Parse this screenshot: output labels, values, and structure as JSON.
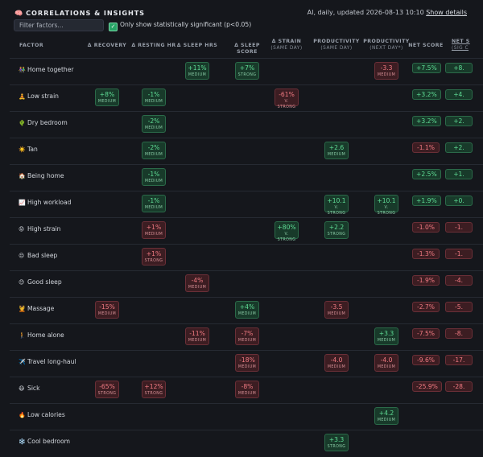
{
  "header": {
    "title_icon": "🧠",
    "title": "CORRELATIONS & INSIGHTS",
    "meta": "AI, daily, updated 2026-08-13 10:10",
    "details_link": "Show details"
  },
  "filter": {
    "placeholder": "Filter factors..."
  },
  "significance": {
    "checked": true,
    "label": "Only show statistically significant (p<0.05)"
  },
  "columns": [
    {
      "key": "factor",
      "label": "FACTOR",
      "sub": ""
    },
    {
      "key": "recovery",
      "label": "Δ RECOVERY",
      "sub": ""
    },
    {
      "key": "rhr",
      "label": "Δ RESTING HR",
      "sub": ""
    },
    {
      "key": "sleep_hrs",
      "label": "Δ SLEEP HRS",
      "sub": ""
    },
    {
      "key": "sleep_score",
      "label": "Δ SLEEP SCORE",
      "sub": ""
    },
    {
      "key": "strain",
      "label": "Δ STRAIN",
      "sub": "(SAME DAY)"
    },
    {
      "key": "prod_same",
      "label": "PRODUCTIVITY",
      "sub": "(SAME DAY)"
    },
    {
      "key": "prod_next",
      "label": "PRODUCTIVITY",
      "sub": "(NEXT DAY*)"
    },
    {
      "key": "net",
      "label": "NET SCORE",
      "sub": ""
    },
    {
      "key": "net_sig",
      "label": "NET S",
      "sub": "(SIG C"
    }
  ],
  "colors": {
    "positive": "#5fdc95",
    "negative": "#f07a82",
    "background": "#15171c"
  },
  "rows": [
    {
      "icon": "👫",
      "name": "Home together",
      "cells": {
        "sleep_hrs": [
          "+11%",
          "MEDIUM",
          "pos"
        ],
        "sleep_score": [
          "+7%",
          "STRONG",
          "pos"
        ],
        "prod_next": [
          "-3.3",
          "MEDIUM",
          "neg"
        ]
      },
      "net": [
        "+7.5%",
        "pos"
      ],
      "net_sig": [
        "+8.",
        "pos"
      ]
    },
    {
      "icon": "🧘",
      "name": "Low strain",
      "cells": {
        "recovery": [
          "+8%",
          "MEDIUM",
          "pos"
        ],
        "rhr": [
          "-1%",
          "MEDIUM",
          "pos"
        ],
        "strain": [
          "-61%",
          "V. STRONG",
          "neg"
        ]
      },
      "net": [
        "+3.2%",
        "pos"
      ],
      "net_sig": [
        "+4.",
        "pos"
      ]
    },
    {
      "icon": "🌵",
      "name": "Dry bedroom",
      "cells": {
        "rhr": [
          "-2%",
          "MEDIUM",
          "pos"
        ]
      },
      "net": [
        "+3.2%",
        "pos"
      ],
      "net_sig": [
        "+2.",
        "pos"
      ]
    },
    {
      "icon": "☀️",
      "name": "Tan",
      "cells": {
        "rhr": [
          "-2%",
          "MEDIUM",
          "pos"
        ],
        "prod_same": [
          "+2.6",
          "MEDIUM",
          "pos"
        ]
      },
      "net": [
        "-1.1%",
        "neg"
      ],
      "net_sig": [
        "+2.",
        "pos"
      ]
    },
    {
      "icon": "🏠",
      "name": "Being home",
      "cells": {
        "rhr": [
          "-1%",
          "MEDIUM",
          "pos"
        ]
      },
      "net": [
        "+2.5%",
        "pos"
      ],
      "net_sig": [
        "+1.",
        "pos"
      ]
    },
    {
      "icon": "📈",
      "name": "High workload",
      "cells": {
        "rhr": [
          "-1%",
          "MEDIUM",
          "pos"
        ],
        "prod_same": [
          "+10.1",
          "V. STRONG",
          "pos"
        ],
        "prod_next": [
          "+10.1",
          "V. STRONG",
          "pos"
        ]
      },
      "net": [
        "+1.9%",
        "pos"
      ],
      "net_sig": [
        "+0.",
        "pos"
      ]
    },
    {
      "icon": "😡",
      "name": "High strain",
      "cells": {
        "rhr": [
          "+1%",
          "MEDIUM",
          "neg"
        ],
        "strain": [
          "+80%",
          "V. STRONG",
          "pos"
        ],
        "prod_same": [
          "+2.2",
          "STRONG",
          "pos"
        ]
      },
      "net": [
        "-1.0%",
        "neg"
      ],
      "net_sig": [
        "-1.",
        "neg"
      ]
    },
    {
      "icon": "😣",
      "name": "Bad sleep",
      "cells": {
        "rhr": [
          "+1%",
          "STRONG",
          "neg"
        ]
      },
      "net": [
        "-1.3%",
        "neg"
      ],
      "net_sig": [
        "-1.",
        "neg"
      ]
    },
    {
      "icon": "😊",
      "name": "Good sleep",
      "cells": {
        "sleep_hrs": [
          "-4%",
          "MEDIUM",
          "neg"
        ]
      },
      "net": [
        "-1.9%",
        "neg"
      ],
      "net_sig": [
        "-4.",
        "neg"
      ]
    },
    {
      "icon": "💆",
      "name": "Massage",
      "cells": {
        "recovery": [
          "-15%",
          "MEDIUM",
          "neg"
        ],
        "sleep_score": [
          "+4%",
          "MEDIUM",
          "pos"
        ],
        "prod_same": [
          "-3.5",
          "MEDIUM",
          "neg"
        ]
      },
      "net": [
        "-2.7%",
        "neg"
      ],
      "net_sig": [
        "-5.",
        "neg"
      ]
    },
    {
      "icon": "🚶",
      "name": "Home alone",
      "cells": {
        "sleep_hrs": [
          "-11%",
          "MEDIUM",
          "neg"
        ],
        "sleep_score": [
          "-7%",
          "MEDIUM",
          "neg"
        ],
        "prod_next": [
          "+3.3",
          "MEDIUM",
          "pos"
        ]
      },
      "net": [
        "-7.5%",
        "neg"
      ],
      "net_sig": [
        "-8.",
        "neg"
      ]
    },
    {
      "icon": "✈️",
      "name": "Travel long-haul",
      "cells": {
        "sleep_score": [
          "-18%",
          "MEDIUM",
          "neg"
        ],
        "prod_same": [
          "-4.0",
          "MEDIUM",
          "neg"
        ],
        "prod_next": [
          "-4.0",
          "MEDIUM",
          "neg"
        ]
      },
      "net": [
        "-9.6%",
        "neg"
      ],
      "net_sig": [
        "-17.",
        "neg"
      ]
    },
    {
      "icon": "😷",
      "name": "Sick",
      "cells": {
        "recovery": [
          "-65%",
          "STRONG",
          "neg"
        ],
        "rhr": [
          "+12%",
          "STRONG",
          "neg"
        ],
        "sleep_score": [
          "-8%",
          "MEDIUM",
          "neg"
        ]
      },
      "net": [
        "-25.9%",
        "neg"
      ],
      "net_sig": [
        "-28.",
        "neg"
      ]
    },
    {
      "icon": "🔥",
      "name": "Low calories",
      "cells": {
        "prod_next": [
          "+4.2",
          "MEDIUM",
          "pos"
        ]
      },
      "net": null,
      "net_sig": null
    },
    {
      "icon": "❄️",
      "name": "Cool bedroom",
      "cells": {
        "prod_same": [
          "+3.3",
          "STRONG",
          "pos"
        ]
      },
      "net": null,
      "net_sig": null
    }
  ]
}
